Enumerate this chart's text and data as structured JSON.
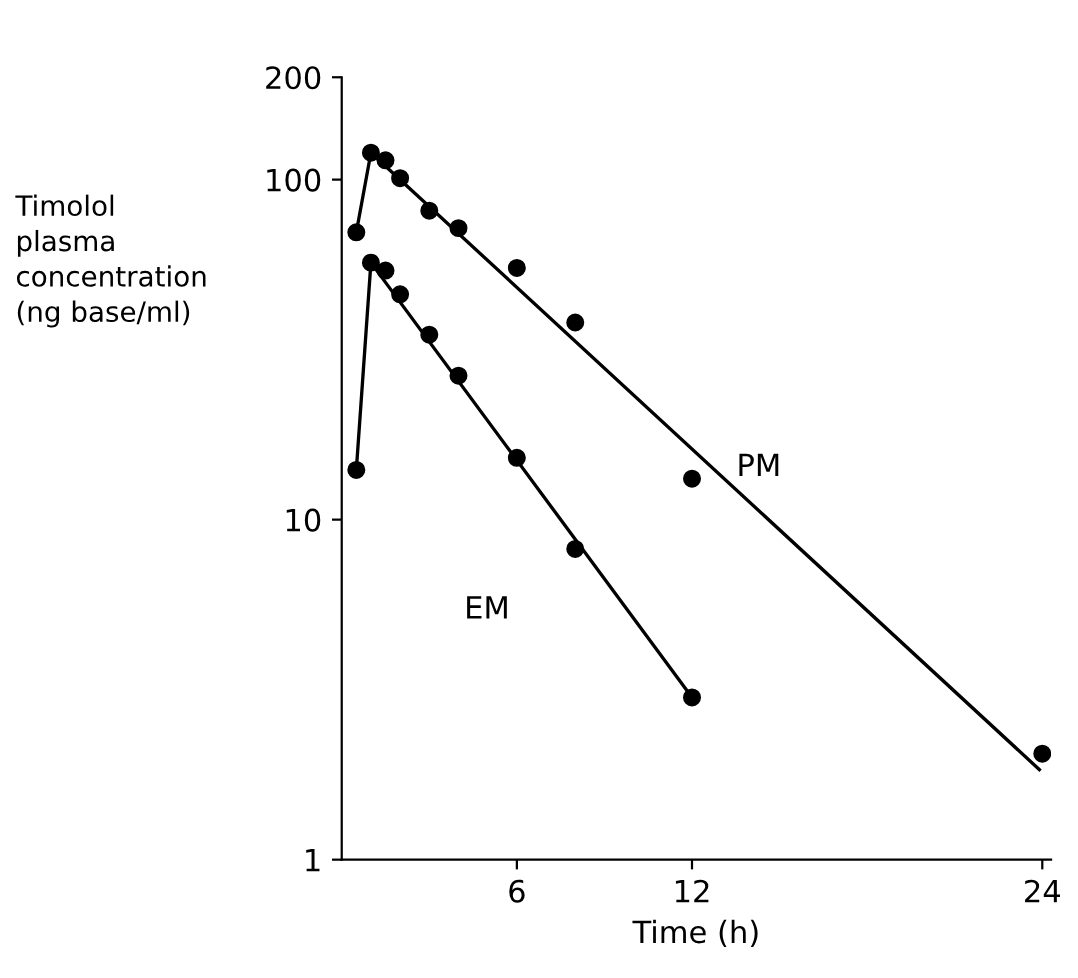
{
  "chart_data": {
    "type": "scatter",
    "xlabel": "Time (h)",
    "ylabel": "Timolol\nplasma\nconcentration\n(ng base/ml)",
    "log": "y",
    "xlim": [
      0,
      24.3
    ],
    "xticks": [
      6,
      12,
      24
    ],
    "ylim": [
      1,
      200
    ],
    "yticks": [
      1,
      10,
      100,
      200
    ],
    "grid": false,
    "legend": false,
    "series": [
      {
        "name": "PM",
        "marker": "circle",
        "color": "#000000",
        "x": [
          0.5,
          1,
          1.5,
          2,
          3,
          4,
          6,
          8,
          12,
          24
        ],
        "values": [
          70,
          120,
          114,
          101,
          81,
          72,
          55,
          38,
          13.2,
          2.05
        ]
      },
      {
        "name": "EM",
        "marker": "circle",
        "color": "#000000",
        "x": [
          0.5,
          1,
          1.5,
          2,
          3,
          4,
          6,
          8,
          12
        ],
        "values": [
          14,
          57,
          54,
          46,
          35,
          26.5,
          15.2,
          8.2,
          3.0
        ]
      },
      {
        "type": "line",
        "marker": "none",
        "color": "#000000",
        "x": [
          0.5,
          1,
          23.9
        ],
        "values": [
          70,
          120,
          1.84
        ]
      },
      {
        "type": "line",
        "marker": "none",
        "color": "#000000",
        "x": [
          0.5,
          1,
          12
        ],
        "values": [
          14,
          57,
          3.0
        ]
      }
    ]
  }
}
